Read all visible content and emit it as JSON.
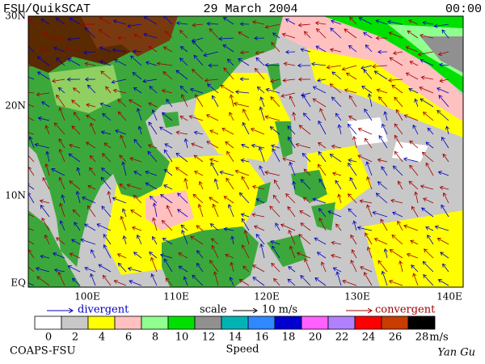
{
  "header": {
    "left": "FSU/QuikSCAT",
    "center": "29 March 2004",
    "right": "00:00"
  },
  "map": {
    "lat_labels": [
      "30N",
      "20N",
      "10N",
      "EQ"
    ],
    "lon_labels": [
      "100E",
      "110E",
      "120E",
      "130E",
      "140E"
    ]
  },
  "legend": {
    "divergent": "divergent",
    "scale": "scale",
    "scale_value": "10 m/s",
    "convergent": "convergent"
  },
  "colorbar": {
    "ticks": [
      0,
      2,
      4,
      6,
      8,
      10,
      12,
      14,
      16,
      18,
      20,
      22,
      24,
      26,
      28
    ],
    "unit": "m/s",
    "title": "Speed",
    "colors": [
      "#ffffff",
      "#c8c8c8",
      "#ffff00",
      "#ffc0c0",
      "#90ff90",
      "#00e000",
      "#909090",
      "#00b4b4",
      "#3088ff",
      "#0000d0",
      "#ff60ff",
      "#b080ff",
      "#ff0000",
      "#c83c00",
      "#000000"
    ]
  },
  "footer": {
    "left": "COAPS-FSU",
    "right": "Yan Gu"
  }
}
